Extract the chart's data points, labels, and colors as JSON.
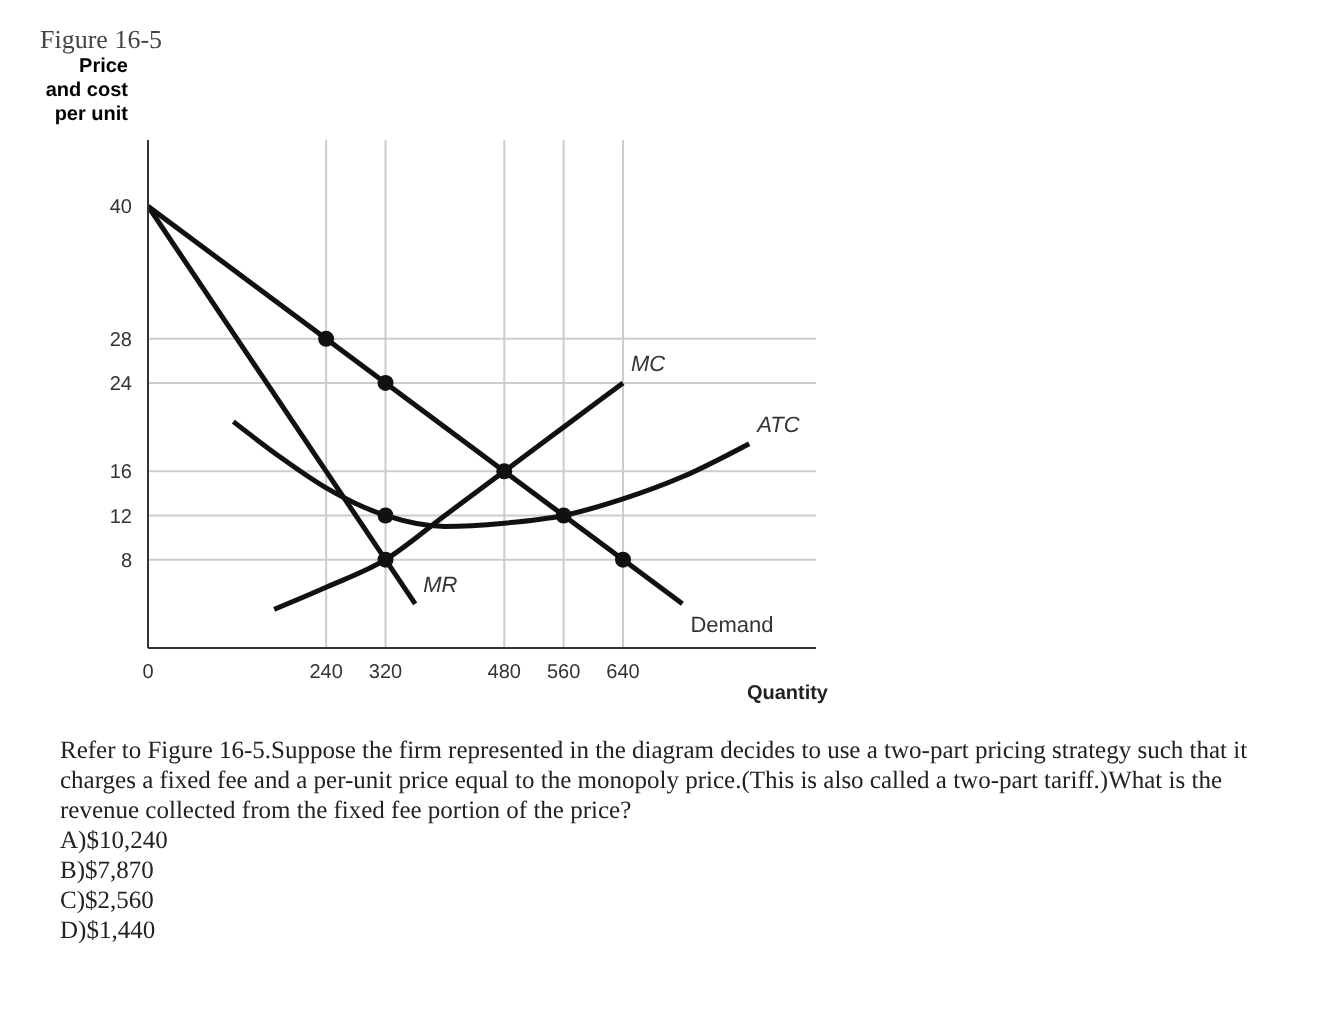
{
  "chart_data": {
    "type": "line",
    "title": "Figure 16-5",
    "ylabel": "Price\nand cost\nper unit",
    "xlabel": "Quantity",
    "xlim": [
      0,
      900
    ],
    "ylim": [
      0,
      46
    ],
    "xticks": [
      0,
      240,
      320,
      480,
      560,
      640
    ],
    "yticks": [
      8,
      12,
      16,
      24,
      28,
      40
    ],
    "grid": false,
    "legend": false,
    "line_style": "solid",
    "series": [
      {
        "name": "Demand",
        "color": "#111111",
        "x": [
          0,
          720
        ],
        "values": [
          40,
          4
        ]
      },
      {
        "name": "MR",
        "color": "#111111",
        "x": [
          0,
          360
        ],
        "values": [
          40,
          4
        ]
      },
      {
        "name": "MC",
        "color": "#111111",
        "x": [
          170,
          240,
          320,
          400,
          480,
          560,
          640
        ],
        "values": [
          3.5,
          5.5,
          8,
          12,
          16,
          20,
          24
        ]
      },
      {
        "name": "ATC",
        "color": "#111111",
        "x": [
          115,
          180,
          240,
          320,
          400,
          480,
          560,
          640,
          720,
          810
        ],
        "values": [
          20.5,
          17.2,
          14.5,
          12,
          11,
          11.3,
          12,
          13.5,
          15.5,
          18.5
        ]
      },
      {
        "type": "scatter",
        "marker": "circle",
        "color": "#111111",
        "x": [
          240,
          320,
          640,
          320,
          320,
          480,
          560
        ],
        "values": [
          28,
          24,
          8,
          12,
          8,
          16,
          12
        ]
      }
    ],
    "ref_lines": [
      {
        "axis": "x",
        "value": 240,
        "color": "#cccccc"
      },
      {
        "axis": "x",
        "value": 320,
        "color": "#cccccc"
      },
      {
        "axis": "x",
        "value": 480,
        "color": "#cccccc"
      },
      {
        "axis": "x",
        "value": 560,
        "color": "#cccccc"
      },
      {
        "axis": "x",
        "value": 640,
        "color": "#cccccc"
      },
      {
        "axis": "y",
        "value": 28,
        "color": "#cccccc"
      },
      {
        "axis": "y",
        "value": 24,
        "color": "#cccccc"
      },
      {
        "axis": "y",
        "value": 16,
        "color": "#cccccc"
      },
      {
        "axis": "y",
        "value": 12,
        "color": "#cccccc"
      },
      {
        "axis": "y",
        "value": 8,
        "color": "#cccccc"
      }
    ],
    "annotations": [
      "Refer to Figure 16-5.Suppose the firm represented in the diagram decides to use a two-part pricing strategy such that it charges a fixed fee and a per-unit price equal to the monopoly price.(This is also called a two-part tariff.)What is the revenue collected from the fixed fee portion of the price?",
      "A)$10,240",
      "B)$7,870",
      "C)$2,560",
      "D)$1,440"
    ]
  }
}
